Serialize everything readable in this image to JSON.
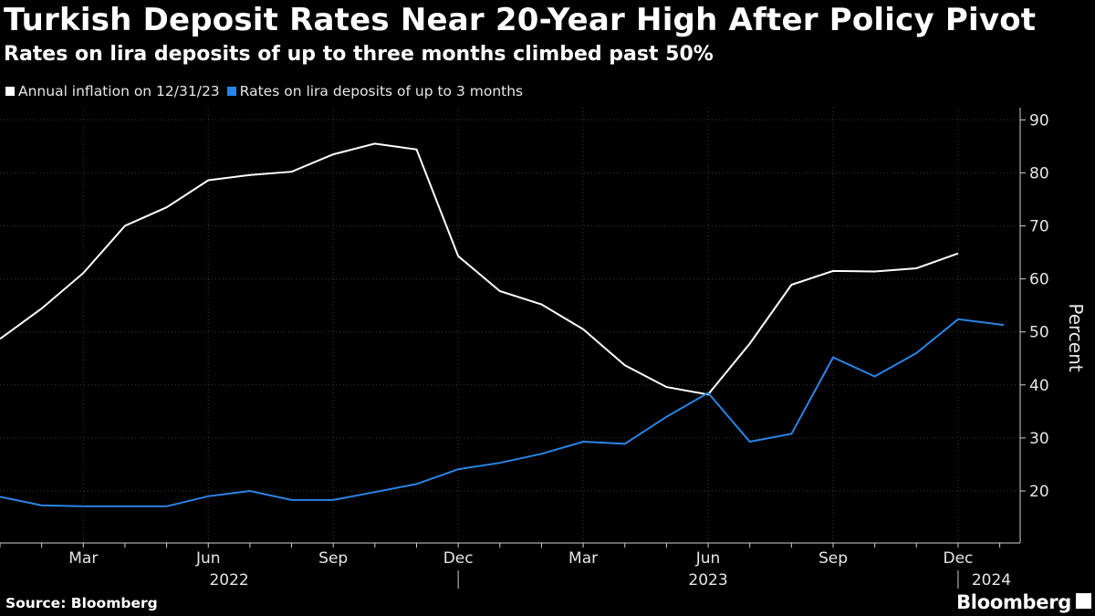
{
  "title": "Turkish Deposit Rates Near 20-Year High After Policy Pivot",
  "subtitle": "Rates on lira deposits of up to three months climbed past 50%",
  "source": "Source: Bloomberg",
  "brand": "Bloomberg",
  "colors": {
    "background": "#000000",
    "inflation": "#ffffff",
    "deposit": "#2a84e6",
    "grid": "#3a3a3a"
  },
  "chart_data": {
    "type": "line",
    "ylabel": "Percent",
    "ylim": [
      12,
      92
    ],
    "yticks": [
      20,
      30,
      40,
      50,
      60,
      70,
      80,
      90
    ],
    "x_domain": [
      0,
      25.2
    ],
    "xticks": [
      {
        "label": "Mar",
        "pos": 2
      },
      {
        "label": "Jun",
        "pos": 5
      },
      {
        "label": "Sep",
        "pos": 8
      },
      {
        "label": "Dec",
        "pos": 11
      },
      {
        "label": "Mar",
        "pos": 14
      },
      {
        "label": "Jun",
        "pos": 17
      },
      {
        "label": "Sep",
        "pos": 20
      },
      {
        "label": "Dec",
        "pos": 23
      }
    ],
    "year_labels": [
      {
        "label": "2022",
        "pos": 5.5
      },
      {
        "label": "2023",
        "pos": 17
      },
      {
        "label": "2024",
        "pos": 23.8
      }
    ],
    "year_separators": [
      11,
      23
    ],
    "series": [
      {
        "name": "Annual inflation on 12/31/23",
        "color": "#ffffff",
        "x": [
          0,
          1,
          2,
          3,
          4,
          5,
          6,
          7,
          8,
          9,
          10,
          11,
          12,
          13,
          14,
          15,
          16,
          17,
          18,
          19,
          20,
          21,
          22,
          23
        ],
        "values": [
          48.7,
          54.4,
          61.1,
          70.0,
          73.5,
          78.6,
          79.6,
          80.2,
          83.5,
          85.5,
          84.4,
          64.3,
          57.7,
          55.2,
          50.5,
          43.7,
          39.6,
          38.2,
          47.8,
          58.9,
          61.5,
          61.4,
          62.0,
          64.8
        ]
      },
      {
        "name": "Rates on lira deposits of up to 3 months",
        "color": "#2a84e6",
        "x": [
          0,
          1,
          2,
          3,
          4,
          5,
          6,
          7,
          8,
          9,
          10,
          11,
          12,
          13,
          14,
          15,
          16,
          17,
          18,
          19,
          20,
          21,
          22,
          23,
          24.1
        ],
        "values": [
          18.9,
          17.3,
          17.1,
          17.1,
          17.1,
          19.0,
          20.0,
          18.3,
          18.3,
          19.8,
          21.3,
          24.1,
          25.3,
          27.0,
          29.3,
          28.9,
          34.0,
          38.5,
          29.3,
          30.8,
          45.2,
          41.6,
          46.0,
          52.4,
          51.3
        ]
      }
    ]
  }
}
